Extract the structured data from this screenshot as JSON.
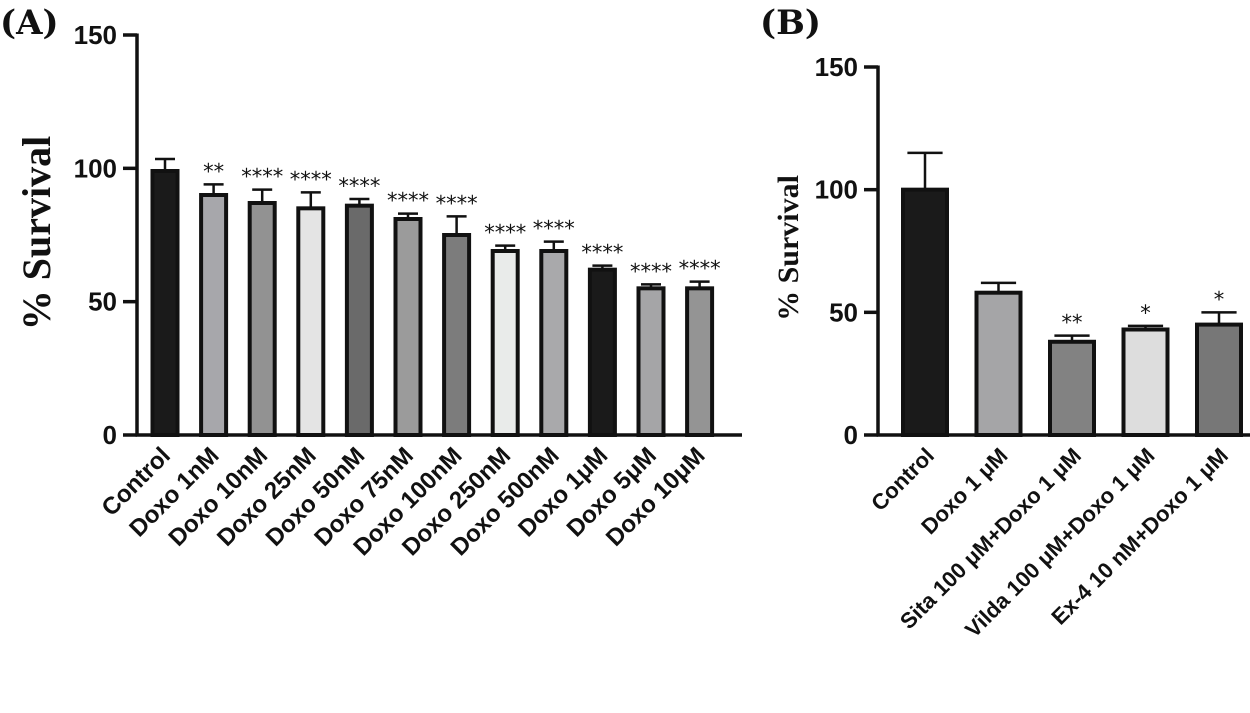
{
  "chart_data": [
    {
      "type": "bar",
      "panel": "(A)",
      "ylabel": "% Survival",
      "xlabel": "",
      "ylim": [
        0,
        150
      ],
      "yticks": [
        0,
        50,
        100,
        150
      ],
      "categories": [
        "Control",
        "Doxo 1nM",
        "Doxo 10nM",
        "Doxo 25nM",
        "Doxo 50nM",
        "Doxo 75nM",
        "Doxo 100nM",
        "Doxo 250nM",
        "Doxo 500nM",
        "Doxo 1μM",
        "Doxo 5μM",
        "Doxo 10μM"
      ],
      "values": [
        99,
        90,
        87,
        85,
        86,
        81,
        75,
        69,
        69,
        62,
        55,
        55
      ],
      "errors": [
        4.5,
        4,
        5,
        6,
        2.5,
        2,
        7,
        2,
        3.5,
        1.5,
        1.5,
        2.5
      ],
      "significance": [
        "",
        "**",
        "****",
        "****",
        "****",
        "****",
        "****",
        "****",
        "****",
        "****",
        "****",
        "****"
      ],
      "colors": [
        "#1a1a1a",
        "#a7a7ab",
        "#929292",
        "#e4e4e4",
        "#6a6a6a",
        "#9b9b9b",
        "#7c7c7c",
        "#e9ebea",
        "#a9a9ab",
        "#1a1a1a",
        "#a5a5a7",
        "#949494"
      ]
    },
    {
      "type": "bar",
      "panel": "(B)",
      "ylabel": "% Survival",
      "xlabel": "",
      "ylim": [
        0,
        150
      ],
      "yticks": [
        0,
        50,
        100,
        150
      ],
      "categories": [
        "Control",
        "Doxo 1 μM",
        "Sita 100 μM+Doxo 1 μM",
        "Vilda 100 μM+Doxo 1 μM",
        "Ex-4 10 nM+Doxo 1 μM"
      ],
      "values": [
        100,
        58,
        38,
        43,
        45
      ],
      "errors": [
        15,
        4,
        2.5,
        1.5,
        5
      ],
      "significance": [
        "",
        "",
        "**",
        "*",
        "*"
      ],
      "colors": [
        "#1a1a1a",
        "#a5a5a7",
        "#828282",
        "#dddddd",
        "#777777"
      ]
    }
  ]
}
